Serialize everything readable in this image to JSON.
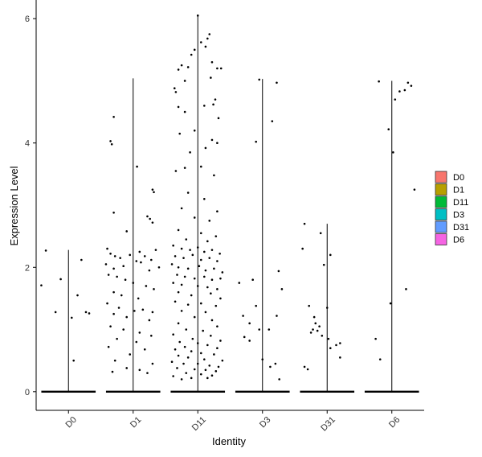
{
  "chart_data": {
    "type": "violin",
    "xlabel": "Identity",
    "ylabel": "Expression Level",
    "categories": [
      "D0",
      "D1",
      "D11",
      "D3",
      "D31",
      "D6"
    ],
    "ylim": [
      -0.3,
      6.3
    ],
    "yticks": [
      0,
      2,
      4,
      6
    ],
    "violin_max": [
      2.28,
      5.04,
      6.05,
      5.03,
      2.7,
      5.0
    ],
    "violin_baseline_value": 0,
    "grid": false,
    "legend": {
      "position": "right",
      "entries": [
        {
          "label": "D0",
          "color": "#F8766D"
        },
        {
          "label": "D1",
          "color": "#B79F00"
        },
        {
          "label": "D11",
          "color": "#00BA38"
        },
        {
          "label": "D3",
          "color": "#00BFC4"
        },
        {
          "label": "D31",
          "color": "#619CFF"
        },
        {
          "label": "D6",
          "color": "#F564E3"
        }
      ]
    },
    "points": {
      "D0": [
        [
          -0.35,
          2.27
        ],
        [
          0.2,
          2.12
        ],
        [
          -0.42,
          1.71
        ],
        [
          -0.12,
          1.81
        ],
        [
          0.14,
          1.55
        ],
        [
          0.27,
          1.28
        ],
        [
          0.32,
          1.26
        ],
        [
          -0.2,
          1.28
        ],
        [
          0.05,
          1.19
        ],
        [
          0.08,
          0.5
        ]
      ],
      "D1": [
        [
          -0.3,
          4.42
        ],
        [
          -0.35,
          4.03
        ],
        [
          -0.33,
          3.98
        ],
        [
          -0.3,
          2.88
        ],
        [
          0.3,
          3.25
        ],
        [
          0.32,
          3.21
        ],
        [
          0.06,
          3.62
        ],
        [
          0.22,
          2.82
        ],
        [
          0.26,
          2.78
        ],
        [
          -0.1,
          2.58
        ],
        [
          0.3,
          2.72
        ],
        [
          -0.4,
          2.3
        ],
        [
          -0.35,
          2.22
        ],
        [
          -0.28,
          2.18
        ],
        [
          -0.2,
          2.15
        ],
        [
          -0.05,
          2.2
        ],
        [
          0.1,
          2.25
        ],
        [
          0.18,
          2.18
        ],
        [
          0.28,
          2.12
        ],
        [
          0.35,
          2.28
        ],
        [
          -0.42,
          2.05
        ],
        [
          -0.3,
          1.98
        ],
        [
          -0.15,
          2.02
        ],
        [
          0.05,
          2.1
        ],
        [
          0.12,
          2.08
        ],
        [
          0.25,
          1.95
        ],
        [
          0.4,
          2.0
        ],
        [
          -0.38,
          1.88
        ],
        [
          -0.25,
          1.85
        ],
        [
          -0.12,
          1.8
        ],
        [
          0.0,
          1.75
        ],
        [
          0.2,
          1.7
        ],
        [
          0.32,
          1.65
        ],
        [
          -0.3,
          1.6
        ],
        [
          -0.18,
          1.55
        ],
        [
          0.08,
          1.5
        ],
        [
          -0.4,
          1.42
        ],
        [
          -0.22,
          1.35
        ],
        [
          0.02,
          1.3
        ],
        [
          0.15,
          1.32
        ],
        [
          0.3,
          1.28
        ],
        [
          -0.3,
          1.25
        ],
        [
          -0.1,
          1.2
        ],
        [
          0.25,
          1.15
        ],
        [
          -0.35,
          1.05
        ],
        [
          -0.15,
          1.0
        ],
        [
          0.1,
          0.95
        ],
        [
          0.28,
          0.9
        ],
        [
          -0.25,
          0.85
        ],
        [
          0.05,
          0.8
        ],
        [
          -0.38,
          0.72
        ],
        [
          0.18,
          0.68
        ],
        [
          -0.05,
          0.6
        ],
        [
          -0.28,
          0.5
        ],
        [
          0.3,
          0.45
        ],
        [
          -0.1,
          0.38
        ],
        [
          0.1,
          0.35
        ],
        [
          -0.32,
          0.32
        ],
        [
          0.22,
          0.3
        ]
      ],
      "D11": [
        [
          0.0,
          6.05
        ],
        [
          0.18,
          5.75
        ],
        [
          0.15,
          5.68
        ],
        [
          0.05,
          5.62
        ],
        [
          0.12,
          5.55
        ],
        [
          -0.05,
          5.5
        ],
        [
          -0.1,
          5.42
        ],
        [
          0.22,
          5.3
        ],
        [
          -0.25,
          5.25
        ],
        [
          -0.15,
          5.22
        ],
        [
          0.3,
          5.2
        ],
        [
          0.36,
          5.2
        ],
        [
          -0.3,
          5.18
        ],
        [
          0.2,
          5.05
        ],
        [
          -0.2,
          5.0
        ],
        [
          -0.36,
          4.88
        ],
        [
          -0.34,
          4.82
        ],
        [
          0.27,
          4.7
        ],
        [
          0.24,
          4.62
        ],
        [
          -0.3,
          4.58
        ],
        [
          0.1,
          4.6
        ],
        [
          -0.2,
          4.5
        ],
        [
          0.32,
          4.4
        ],
        [
          -0.05,
          4.2
        ],
        [
          -0.28,
          4.15
        ],
        [
          0.22,
          4.05
        ],
        [
          0.3,
          4.0
        ],
        [
          0.12,
          3.92
        ],
        [
          -0.12,
          3.85
        ],
        [
          0.05,
          3.62
        ],
        [
          -0.34,
          3.55
        ],
        [
          -0.2,
          3.6
        ],
        [
          0.25,
          3.48
        ],
        [
          -0.15,
          3.2
        ],
        [
          0.1,
          3.1
        ],
        [
          -0.25,
          2.95
        ],
        [
          0.3,
          2.9
        ],
        [
          -0.05,
          2.8
        ],
        [
          0.18,
          2.75
        ],
        [
          -0.3,
          2.6
        ],
        [
          0.05,
          2.55
        ],
        [
          0.28,
          2.5
        ],
        [
          -0.18,
          2.45
        ],
        [
          0.15,
          2.42
        ],
        [
          -0.38,
          2.35
        ],
        [
          -0.25,
          2.3
        ],
        [
          -0.12,
          2.28
        ],
        [
          0.0,
          2.32
        ],
        [
          0.1,
          2.25
        ],
        [
          0.22,
          2.28
        ],
        [
          0.34,
          2.22
        ],
        [
          -0.35,
          2.18
        ],
        [
          -0.22,
          2.15
        ],
        [
          -0.08,
          2.2
        ],
        [
          0.05,
          2.12
        ],
        [
          0.18,
          2.15
        ],
        [
          0.3,
          2.1
        ],
        [
          -0.4,
          2.05
        ],
        [
          -0.3,
          2.0
        ],
        [
          -0.15,
          1.98
        ],
        [
          0.02,
          2.02
        ],
        [
          0.12,
          1.95
        ],
        [
          0.25,
          1.98
        ],
        [
          0.38,
          1.92
        ],
        [
          -0.32,
          1.88
        ],
        [
          -0.2,
          1.85
        ],
        [
          -0.05,
          1.82
        ],
        [
          0.1,
          1.85
        ],
        [
          0.22,
          1.8
        ],
        [
          0.35,
          1.82
        ],
        [
          -0.38,
          1.75
        ],
        [
          -0.25,
          1.72
        ],
        [
          0.0,
          1.7
        ],
        [
          0.15,
          1.68
        ],
        [
          0.3,
          1.65
        ],
        [
          -0.3,
          1.6
        ],
        [
          -0.1,
          1.55
        ],
        [
          0.2,
          1.58
        ],
        [
          0.35,
          1.5
        ],
        [
          -0.35,
          1.45
        ],
        [
          -0.15,
          1.4
        ],
        [
          0.05,
          1.42
        ],
        [
          0.28,
          1.38
        ],
        [
          -0.25,
          1.3
        ],
        [
          0.12,
          1.28
        ],
        [
          -0.05,
          1.2
        ],
        [
          0.22,
          1.15
        ],
        [
          -0.3,
          1.1
        ],
        [
          0.3,
          1.05
        ],
        [
          -0.18,
          1.0
        ],
        [
          0.08,
          0.98
        ],
        [
          -0.38,
          0.92
        ],
        [
          0.2,
          0.9
        ],
        [
          -0.08,
          0.85
        ],
        [
          0.35,
          0.82
        ],
        [
          -0.28,
          0.8
        ],
        [
          0.0,
          0.78
        ],
        [
          0.15,
          0.75
        ],
        [
          -0.2,
          0.72
        ],
        [
          0.3,
          0.7
        ],
        [
          -0.35,
          0.68
        ],
        [
          -0.1,
          0.65
        ],
        [
          0.05,
          0.62
        ],
        [
          0.25,
          0.6
        ],
        [
          -0.3,
          0.58
        ],
        [
          -0.15,
          0.55
        ],
        [
          0.1,
          0.52
        ],
        [
          0.38,
          0.5
        ],
        [
          -0.4,
          0.48
        ],
        [
          -0.22,
          0.45
        ],
        [
          0.0,
          0.45
        ],
        [
          0.18,
          0.42
        ],
        [
          0.32,
          0.4
        ],
        [
          -0.32,
          0.38
        ],
        [
          -0.05,
          0.36
        ],
        [
          0.12,
          0.35
        ],
        [
          0.28,
          0.33
        ],
        [
          -0.18,
          0.3
        ],
        [
          0.05,
          0.28
        ],
        [
          0.22,
          0.26
        ],
        [
          -0.38,
          0.25
        ],
        [
          -0.1,
          0.22
        ],
        [
          0.15,
          0.22
        ],
        [
          -0.25,
          0.2
        ]
      ],
      "D3": [
        [
          -0.05,
          5.02
        ],
        [
          0.22,
          4.97
        ],
        [
          -0.1,
          4.02
        ],
        [
          0.15,
          4.35
        ],
        [
          0.25,
          1.94
        ],
        [
          0.3,
          1.65
        ],
        [
          -0.36,
          1.75
        ],
        [
          -0.15,
          1.8
        ],
        [
          -0.1,
          1.38
        ],
        [
          0.22,
          1.22
        ],
        [
          -0.3,
          1.22
        ],
        [
          -0.2,
          1.1
        ],
        [
          -0.05,
          1.0
        ],
        [
          0.1,
          1.0
        ],
        [
          -0.28,
          0.88
        ],
        [
          -0.2,
          0.82
        ],
        [
          0.2,
          0.45
        ],
        [
          0.26,
          0.2
        ],
        [
          0.0,
          0.52
        ],
        [
          0.12,
          0.4
        ]
      ],
      "D31": [
        [
          -0.35,
          2.7
        ],
        [
          -0.1,
          2.55
        ],
        [
          0.05,
          2.2
        ],
        [
          -0.38,
          2.3
        ],
        [
          -0.05,
          2.04
        ],
        [
          -0.28,
          1.38
        ],
        [
          0.0,
          1.35
        ],
        [
          -0.2,
          1.2
        ],
        [
          -0.18,
          1.1
        ],
        [
          -0.12,
          1.05
        ],
        [
          -0.22,
          1.0
        ],
        [
          -0.15,
          0.98
        ],
        [
          -0.25,
          0.95
        ],
        [
          -0.08,
          0.9
        ],
        [
          0.02,
          0.85
        ],
        [
          0.2,
          0.78
        ],
        [
          0.14,
          0.75
        ],
        [
          0.05,
          0.7
        ],
        [
          -0.35,
          0.4
        ],
        [
          -0.3,
          0.36
        ],
        [
          0.2,
          0.55
        ]
      ],
      "D6": [
        [
          -0.2,
          4.99
        ],
        [
          0.25,
          4.97
        ],
        [
          0.3,
          4.92
        ],
        [
          0.2,
          4.85
        ],
        [
          0.12,
          4.83
        ],
        [
          0.05,
          4.7
        ],
        [
          -0.05,
          4.22
        ],
        [
          0.02,
          3.85
        ],
        [
          0.35,
          3.25
        ],
        [
          0.22,
          1.65
        ],
        [
          -0.02,
          1.42
        ],
        [
          -0.25,
          0.85
        ],
        [
          -0.18,
          0.52
        ]
      ]
    }
  }
}
